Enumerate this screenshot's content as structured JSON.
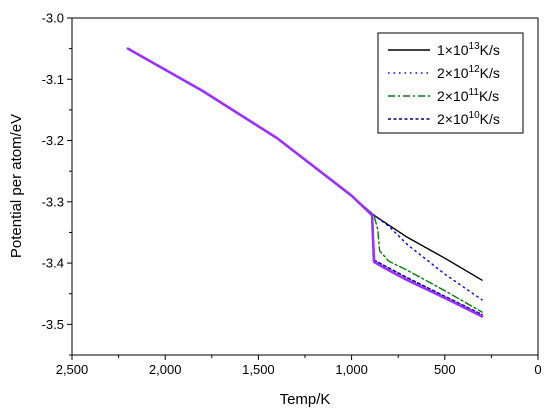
{
  "chart_data": {
    "type": "line",
    "title": "",
    "xlabel": "Temp/K",
    "ylabel": "Potential per atom/eV",
    "xlim": [
      2500,
      0
    ],
    "ylim": [
      -3.55,
      -3.0
    ],
    "x_reversed": true,
    "x_ticks": [
      2500,
      2000,
      1500,
      1000,
      500,
      0
    ],
    "x_tick_labels": [
      "2,500",
      "2,000",
      "1,500",
      "1,000",
      "500",
      "0"
    ],
    "y_ticks": [
      -3.0,
      -3.1,
      -3.2,
      -3.3,
      -3.4,
      -3.5
    ],
    "y_tick_labels": [
      "-3.0",
      "-3.1",
      "-3.2",
      "-3.3",
      "-3.4",
      "-3.5"
    ],
    "grid": false,
    "legend_position": "top-right",
    "series": [
      {
        "name_base": "1×10",
        "name_exp": "13",
        "name_unit": "K/s",
        "color": "#000000",
        "style": "solid",
        "x": [
          2200,
          1800,
          1400,
          1000,
          880,
          700,
          500,
          300
        ],
        "y": [
          -3.05,
          -3.119,
          -3.196,
          -3.29,
          -3.322,
          -3.358,
          -3.392,
          -3.428
        ]
      },
      {
        "name_base": "2×10",
        "name_exp": "12",
        "name_unit": "K/s",
        "color": "#0000ee",
        "style": "dot",
        "x": [
          2200,
          1800,
          1400,
          1000,
          880,
          800,
          700,
          500,
          300
        ],
        "y": [
          -3.05,
          -3.119,
          -3.196,
          -3.29,
          -3.322,
          -3.34,
          -3.37,
          -3.418,
          -3.46
        ]
      },
      {
        "name_base": "2×10",
        "name_exp": "11",
        "name_unit": "K/s",
        "color": "#008000",
        "style": "dashdot",
        "x": [
          2200,
          1800,
          1400,
          1000,
          880,
          860,
          850,
          800,
          700,
          500,
          300
        ],
        "y": [
          -3.05,
          -3.119,
          -3.196,
          -3.29,
          -3.322,
          -3.345,
          -3.38,
          -3.397,
          -3.412,
          -3.445,
          -3.48
        ]
      },
      {
        "name_base": "2×10",
        "name_exp": "10",
        "name_unit": "K/s",
        "color": "#000080",
        "style": "dash",
        "x": [
          2200,
          1800,
          1400,
          1000,
          890,
          885,
          880,
          800,
          700,
          500,
          300
        ],
        "y": [
          -3.05,
          -3.119,
          -3.196,
          -3.29,
          -3.322,
          -3.36,
          -3.395,
          -3.408,
          -3.424,
          -3.454,
          -3.484
        ]
      },
      {
        "name_base": "",
        "name_exp": "",
        "name_unit": "",
        "color": "#9b30ff",
        "style": "solid-thick",
        "x": [
          2200,
          1800,
          1400,
          1000,
          890,
          885,
          880,
          800,
          700,
          500,
          300
        ],
        "y": [
          -3.05,
          -3.119,
          -3.196,
          -3.29,
          -3.322,
          -3.36,
          -3.398,
          -3.412,
          -3.428,
          -3.457,
          -3.487
        ]
      }
    ]
  }
}
